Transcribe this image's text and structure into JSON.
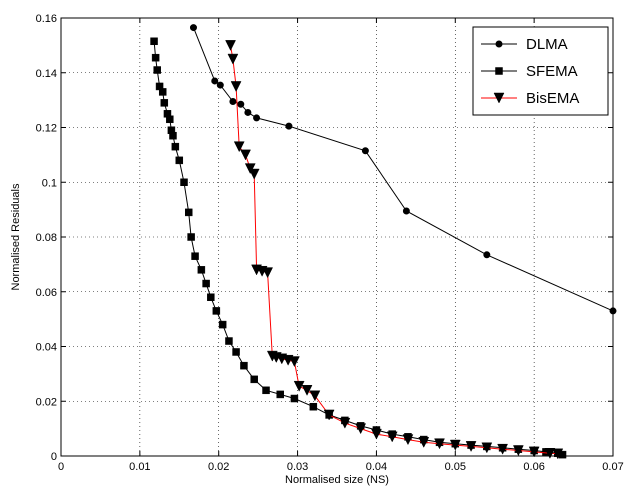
{
  "chart_data": {
    "type": "line",
    "title": "",
    "xlabel": "Normalised size (NS)",
    "ylabel": "Normalised Residuals",
    "xlim": [
      0,
      0.07
    ],
    "ylim": [
      0,
      0.16
    ],
    "x_ticks": [
      0,
      0.01,
      0.02,
      0.03,
      0.04,
      0.05,
      0.06,
      0.07
    ],
    "x_tick_labels": [
      "0",
      "0.01",
      "0.02",
      "0.03",
      "0.04",
      "0.05",
      "0.06",
      "0.07"
    ],
    "y_ticks": [
      0,
      0.02,
      0.04,
      0.06,
      0.08,
      0.1,
      0.12,
      0.14,
      0.16
    ],
    "y_tick_labels": [
      "0",
      "0.02",
      "0.04",
      "0.06",
      "0.08",
      "0.1",
      "0.12",
      "0.14",
      "0.16"
    ],
    "grid": true,
    "legend_position": "top-right",
    "series": [
      {
        "name": "DLMA",
        "color": "#000000",
        "marker": "circle",
        "x": [
          0.0168,
          0.0195,
          0.0202,
          0.0218,
          0.0228,
          0.0237,
          0.0248,
          0.0289,
          0.0386,
          0.0438,
          0.054,
          0.07
        ],
        "y": [
          0.1565,
          0.137,
          0.1355,
          0.1295,
          0.1285,
          0.1255,
          0.1235,
          0.1205,
          0.1115,
          0.0895,
          0.0735,
          0.053
        ]
      },
      {
        "name": "SFEMA",
        "color": "#000000",
        "marker": "square",
        "x": [
          0.0118,
          0.012,
          0.0122,
          0.0125,
          0.0129,
          0.0131,
          0.0135,
          0.0138,
          0.014,
          0.0142,
          0.0145,
          0.015,
          0.0156,
          0.0162,
          0.0165,
          0.017,
          0.0178,
          0.0184,
          0.019,
          0.0197,
          0.0205,
          0.0213,
          0.0222,
          0.0232,
          0.0245,
          0.026,
          0.0278,
          0.0296,
          0.032,
          0.034,
          0.036,
          0.038,
          0.04,
          0.042,
          0.044,
          0.046,
          0.048,
          0.05,
          0.052,
          0.054,
          0.056,
          0.058,
          0.06,
          0.0615,
          0.063,
          0.0636
        ],
        "y": [
          0.1515,
          0.1455,
          0.141,
          0.135,
          0.133,
          0.129,
          0.125,
          0.123,
          0.119,
          0.117,
          0.113,
          0.108,
          0.1,
          0.089,
          0.08,
          0.073,
          0.068,
          0.063,
          0.058,
          0.053,
          0.048,
          0.042,
          0.038,
          0.033,
          0.028,
          0.024,
          0.0225,
          0.021,
          0.018,
          0.015,
          0.013,
          0.011,
          0.0095,
          0.008,
          0.007,
          0.006,
          0.005,
          0.0045,
          0.004,
          0.0035,
          0.003,
          0.0025,
          0.002,
          0.0015,
          0.001,
          0.0005
        ]
      },
      {
        "name": "BisEMA",
        "color": "#ff0000",
        "marker": "triangle-down",
        "x": [
          0.0215,
          0.0218,
          0.0222,
          0.0226,
          0.0234,
          0.024,
          0.0245,
          0.0248,
          0.0255,
          0.0262,
          0.0268,
          0.0273,
          0.028,
          0.0288,
          0.0296,
          0.0302,
          0.0312,
          0.0322,
          0.034,
          0.036,
          0.038,
          0.04,
          0.042,
          0.044,
          0.046,
          0.048,
          0.05,
          0.052,
          0.054,
          0.056,
          0.058,
          0.06,
          0.062,
          0.063
        ],
        "y": [
          0.15,
          0.145,
          0.135,
          0.113,
          0.11,
          0.105,
          0.103,
          0.068,
          0.0675,
          0.067,
          0.0365,
          0.036,
          0.0355,
          0.035,
          0.0345,
          0.0255,
          0.024,
          0.022,
          0.015,
          0.012,
          0.01,
          0.008,
          0.007,
          0.006,
          0.005,
          0.0045,
          0.004,
          0.0035,
          0.003,
          0.0025,
          0.002,
          0.0015,
          0.001,
          0.0008
        ]
      }
    ]
  }
}
